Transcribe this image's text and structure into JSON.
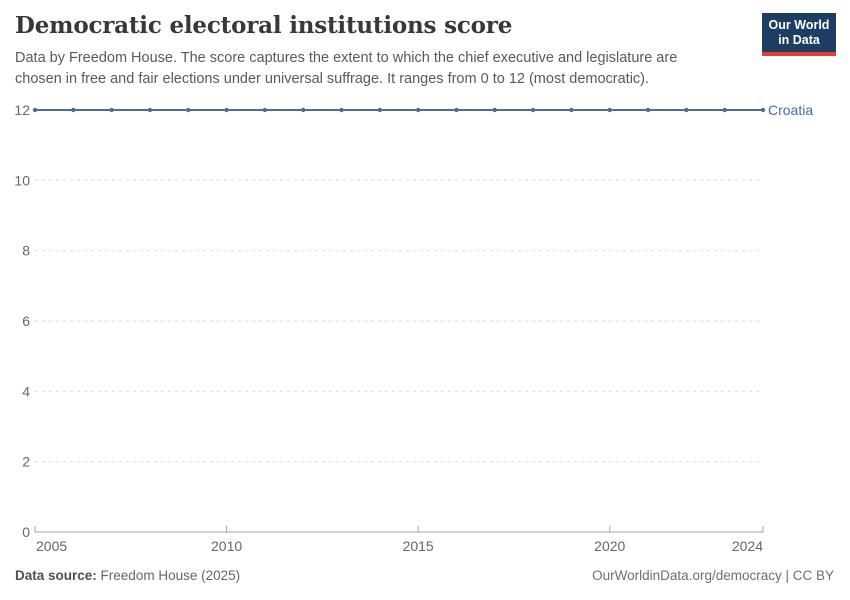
{
  "header": {
    "title": "Democratic electoral institutions score",
    "subtitle": "Data by Freedom House. The score captures the extent to which the chief executive and legislature are chosen in free and fair elections under universal suffrage. It ranges from 0 to 12 (most democratic)."
  },
  "logo": {
    "line1": "Our World",
    "line2": "in Data",
    "background": "#1d3d63",
    "accent": "#e63e36"
  },
  "chart_data": {
    "type": "line",
    "title": "Democratic electoral institutions score",
    "xlabel": "",
    "ylabel": "",
    "x": [
      2005,
      2006,
      2007,
      2008,
      2009,
      2010,
      2011,
      2012,
      2013,
      2014,
      2015,
      2016,
      2017,
      2018,
      2019,
      2020,
      2021,
      2022,
      2023,
      2024
    ],
    "series": [
      {
        "name": "Croatia",
        "color": "#4c6a9c",
        "values": [
          12,
          12,
          12,
          12,
          12,
          12,
          12,
          12,
          12,
          12,
          12,
          12,
          12,
          12,
          12,
          12,
          12,
          12,
          12,
          12
        ]
      }
    ],
    "xlim": [
      2005,
      2024
    ],
    "ylim": [
      0,
      12
    ],
    "yticks": [
      0,
      2,
      4,
      6,
      8,
      10,
      12
    ],
    "xticks": [
      2005,
      2010,
      2015,
      2020,
      2024
    ],
    "grid": true,
    "legend_position": "end-of-line-label"
  },
  "footer": {
    "source_label": "Data source:",
    "source_value": "Freedom House (2025)",
    "rights": "OurWorldinData.org/democracy | CC BY"
  },
  "colors": {
    "line": "#4c6a9c",
    "grid": "#dcdcdc",
    "axis": "#a3a3a3",
    "tick_text": "#666666",
    "title_text": "#383838",
    "subtitle_text": "#595959",
    "footer_text": "#666666"
  }
}
